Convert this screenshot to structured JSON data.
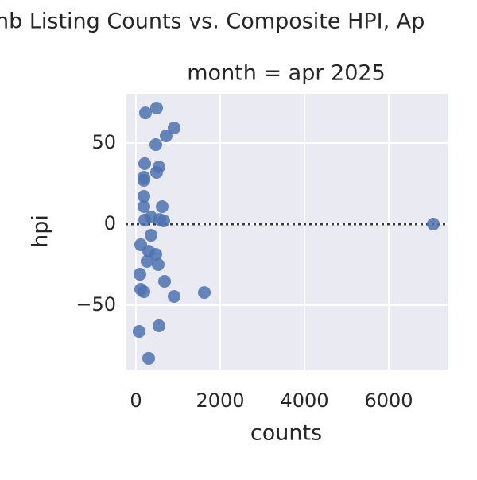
{
  "chart_data": {
    "type": "scatter",
    "title": "nb Listing Counts vs. Composite HPI, Ap",
    "subtitle": "month = apr 2025",
    "x_label": "counts",
    "y_label": "hpi",
    "color": "#4c72b0",
    "x": [
      226,
      490,
      906,
      717,
      472,
      208,
      547,
      490,
      189,
      189,
      189,
      189,
      623,
      208,
      358,
      566,
      660,
      358,
      113,
      302,
      472,
      264,
      528,
      94,
      679,
      113,
      189,
      1623,
      906,
      547,
      75,
      302,
      7057
    ],
    "values": [
      68.6,
      71.6,
      59.3,
      54.4,
      49,
      37.3,
      35.3,
      31.9,
      28.9,
      27,
      17.2,
      10.8,
      10.8,
      2.5,
      4.4,
      2.9,
      2,
      -6.9,
      -12.7,
      -16.7,
      -18.6,
      -23,
      -25,
      -30.9,
      -35.3,
      -40.2,
      -41.7,
      -42.2,
      -44.6,
      -62.7,
      -66.2,
      -82.8,
      0
    ],
    "xlim": [
      -245,
      7396
    ],
    "ylim": [
      -89.7,
      80.4
    ],
    "xticks": [
      0,
      2000,
      4000,
      6000
    ],
    "yticks": [
      {
        "value": -50,
        "label": "−50"
      },
      0,
      50
    ],
    "refline_y": 0,
    "grid": true
  }
}
